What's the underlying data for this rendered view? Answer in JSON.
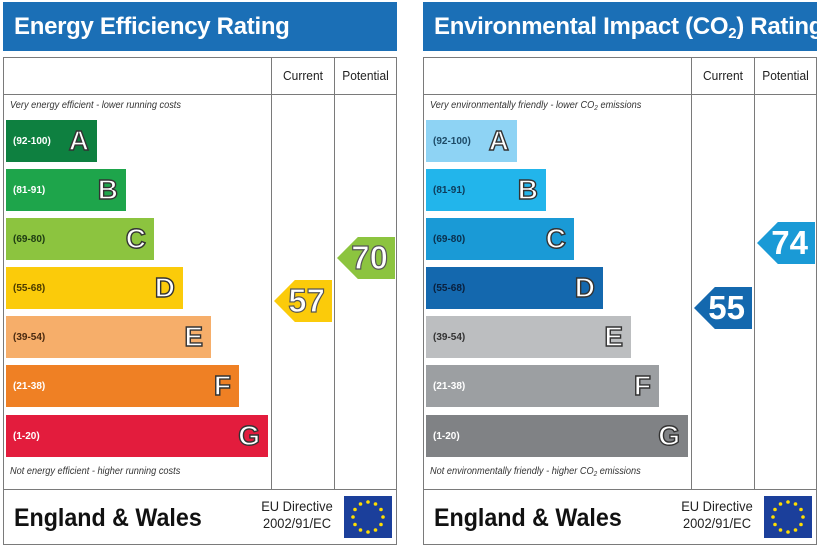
{
  "energy": {
    "title": "Energy Efficiency Rating",
    "col_current": "Current",
    "col_potential": "Potential",
    "desc_top": "Very energy efficient - lower running costs",
    "desc_bottom": "Not energy efficient - higher running costs",
    "bands": [
      {
        "range": "(92-100)",
        "letter": "A",
        "color": "#0e8040"
      },
      {
        "range": "(81-91)",
        "letter": "B",
        "color": "#1ea54b"
      },
      {
        "range": "(69-80)",
        "letter": "C",
        "color": "#8cc43f"
      },
      {
        "range": "(55-68)",
        "letter": "D",
        "color": "#fbcb0a"
      },
      {
        "range": "(39-54)",
        "letter": "E",
        "color": "#f6ae6a"
      },
      {
        "range": "(21-38)",
        "letter": "F",
        "color": "#ef8024"
      },
      {
        "range": "(1-20)",
        "letter": "G",
        "color": "#e31c3d"
      }
    ],
    "current": {
      "value": "57",
      "band": "D",
      "color": "#fbcb0a"
    },
    "potential": {
      "value": "70",
      "band": "C",
      "color": "#8cc43f"
    },
    "footer_country": "England & Wales",
    "footer_directive_line1": "EU Directive",
    "footer_directive_line2": "2002/91/EC"
  },
  "environmental": {
    "title_main": "Environmental Impact (CO",
    "title_sub": "2",
    "title_end": ") Rating",
    "col_current": "Current",
    "col_potential": "Potential",
    "desc_top_main": "Very environmentally friendly - lower CO",
    "desc_top_sub": "2",
    "desc_top_end": " emissions",
    "desc_bottom_main": "Not environmentally friendly - higher CO",
    "desc_bottom_sub": "2",
    "desc_bottom_end": " emissions",
    "bands": [
      {
        "range": "(92-100)",
        "letter": "A",
        "color": "#8ed3f4"
      },
      {
        "range": "(81-91)",
        "letter": "B",
        "color": "#22b5eb"
      },
      {
        "range": "(69-80)",
        "letter": "C",
        "color": "#1a9ad6"
      },
      {
        "range": "(55-68)",
        "letter": "D",
        "color": "#1468ae"
      },
      {
        "range": "(39-54)",
        "letter": "E",
        "color": "#bcbec0"
      },
      {
        "range": "(21-38)",
        "letter": "F",
        "color": "#9c9fa2"
      },
      {
        "range": "(1-20)",
        "letter": "G",
        "color": "#808285"
      }
    ],
    "current": {
      "value": "55",
      "band": "D",
      "color": "#1468ae"
    },
    "potential": {
      "value": "74",
      "band": "C",
      "color": "#1a9ad6"
    },
    "footer_country": "England & Wales",
    "footer_directive_line1": "EU Directive",
    "footer_directive_line2": "2002/91/EC"
  }
}
